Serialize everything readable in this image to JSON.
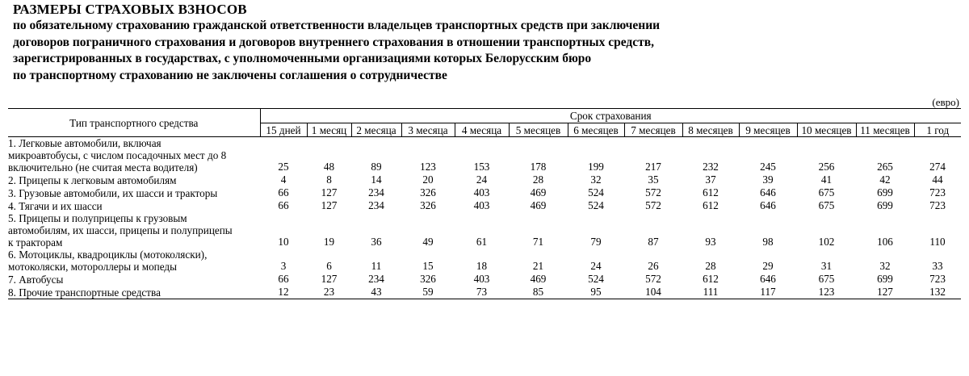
{
  "document": {
    "title": "РАЗМЕРЫ СТРАХОВЫХ ВЗНОСОВ",
    "subtitle_lines": [
      "по обязательному страхованию гражданской ответственности владельцев транспортных средств при заключении",
      "договоров пограничного страхования и договоров внутреннего страхования в отношении транспортных средств,",
      "зарегистрированных в государствах, с уполномоченными организациями которых Белорусским бюро",
      "по транспортному страхованию не заключены соглашения о сотрудничестве"
    ],
    "unit": "(евро)"
  },
  "table": {
    "type_header": "Тип транспортного средства",
    "term_header": "Срок страхования",
    "periods": [
      "15 дней",
      "1 месяц",
      "2 месяца",
      "3 месяца",
      "4 месяца",
      "5 месяцев",
      "6 месяцев",
      "7 месяцев",
      "8 месяцев",
      "9 месяцев",
      "10 месяцев",
      "11 месяцев",
      "1 год"
    ],
    "rows": [
      {
        "lines": [
          "1. Легковые автомобили, включая",
          "микроавтобусы, с числом посадочных мест до 8",
          "включительно (не считая места водителя)"
        ],
        "values": [
          "25",
          "48",
          "89",
          "123",
          "153",
          "178",
          "199",
          "217",
          "232",
          "245",
          "256",
          "265",
          "274"
        ]
      },
      {
        "lines": [
          "2. Прицепы к легковым автомобилям"
        ],
        "values": [
          "4",
          "8",
          "14",
          "20",
          "24",
          "28",
          "32",
          "35",
          "37",
          "39",
          "41",
          "42",
          "44"
        ]
      },
      {
        "lines": [
          "3. Грузовые автомобили, их шасси и тракторы"
        ],
        "values": [
          "66",
          "127",
          "234",
          "326",
          "403",
          "469",
          "524",
          "572",
          "612",
          "646",
          "675",
          "699",
          "723"
        ]
      },
      {
        "lines": [
          "4. Тягачи и их шасси"
        ],
        "values": [
          "66",
          "127",
          "234",
          "326",
          "403",
          "469",
          "524",
          "572",
          "612",
          "646",
          "675",
          "699",
          "723"
        ]
      },
      {
        "lines": [
          "5. Прицепы и полуприцепы к грузовым",
          "автомобилям, их шасси, прицепы и полуприцепы",
          "к тракторам"
        ],
        "values": [
          "10",
          "19",
          "36",
          "49",
          "61",
          "71",
          "79",
          "87",
          "93",
          "98",
          "102",
          "106",
          "110"
        ]
      },
      {
        "lines": [
          "6. Мотоциклы, квадроциклы (мотоколяски),",
          "мотоколяски, мотороллеры и мопеды"
        ],
        "values": [
          "3",
          "6",
          "11",
          "15",
          "18",
          "21",
          "24",
          "26",
          "28",
          "29",
          "31",
          "32",
          "33"
        ]
      },
      {
        "lines": [
          "7. Автобусы"
        ],
        "values": [
          "66",
          "127",
          "234",
          "326",
          "403",
          "469",
          "524",
          "572",
          "612",
          "646",
          "675",
          "699",
          "723"
        ]
      },
      {
        "lines": [
          "8. Прочие транспортные средства"
        ],
        "values": [
          "12",
          "23",
          "43",
          "59",
          "73",
          "85",
          "95",
          "104",
          "111",
          "117",
          "123",
          "127",
          "132"
        ]
      }
    ]
  }
}
